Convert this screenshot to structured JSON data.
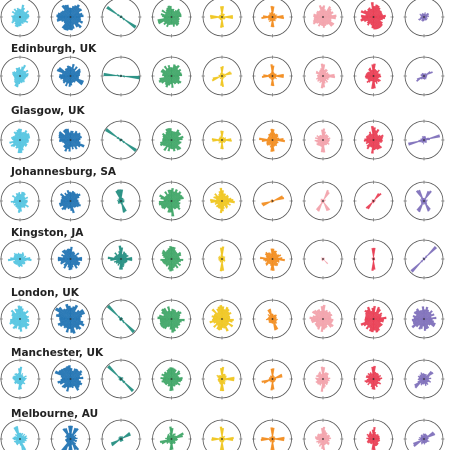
{
  "chart_data": {
    "type": "polar-bar-small-multiples",
    "title": "",
    "xlabel": "",
    "ylabel": "",
    "grid": false,
    "columns": 9,
    "column_colors": [
      "#4fc3e0",
      "#1a6fb0",
      "#1e8c7e",
      "#3aa363",
      "#f0c419",
      "#f28a1a",
      "#f2a0a8",
      "#e8384f",
      "#7b6bb8"
    ],
    "rows": [
      {
        "label": ""
      },
      {
        "label": "Edinburgh, UK"
      },
      {
        "label": "Glasgow, UK"
      },
      {
        "label": "Johannesburg, SA"
      },
      {
        "label": "Kingston, JA"
      },
      {
        "label": "London, UK"
      },
      {
        "label": "Manchester, UK"
      },
      {
        "label": "Melbourne, AU"
      }
    ],
    "profiles": [
      [
        {
          "spread": 0.65,
          "axis": 0.3,
          "peak": [
            20,
            200
          ]
        },
        {
          "spread": 0.85,
          "axis": 0.2,
          "peak": [
            300
          ]
        },
        {
          "spread": 0.05,
          "axis": 0.9,
          "peak": [
            125,
            305
          ]
        },
        {
          "spread": 0.7,
          "axis": 0.2,
          "peak": [
            250
          ]
        },
        {
          "spread": 0.3,
          "axis": 0.75,
          "peak": [
            0,
            90,
            180,
            270
          ]
        },
        {
          "spread": 0.4,
          "axis": 0.6,
          "peak": [
            0,
            90,
            180,
            270
          ]
        },
        {
          "spread": 0.75,
          "axis": 0.2,
          "peak": [
            0,
            90
          ]
        },
        {
          "spread": 0.8,
          "axis": 0.2,
          "peak": [
            0
          ]
        },
        {
          "spread": 0.25,
          "axis": 0.2,
          "peak": [
            60,
            240
          ]
        }
      ],
      [
        {
          "spread": 0.6,
          "axis": 0.4,
          "peak": [
            200,
            20
          ]
        },
        {
          "spread": 0.75,
          "axis": 0.3,
          "peak": [
            300,
            120
          ]
        },
        {
          "spread": 0.02,
          "axis": 0.95,
          "peak": [
            95,
            275
          ]
        },
        {
          "spread": 0.75,
          "axis": 0.2,
          "peak": [
            250
          ]
        },
        {
          "spread": 0.25,
          "axis": 0.7,
          "peak": [
            0,
            70,
            180,
            250
          ]
        },
        {
          "spread": 0.35,
          "axis": 0.65,
          "peak": [
            0,
            90,
            180,
            270
          ]
        },
        {
          "spread": 0.6,
          "axis": 0.5,
          "peak": [
            0,
            90,
            180
          ]
        },
        {
          "spread": 0.65,
          "axis": 0.5,
          "peak": [
            0,
            180
          ]
        },
        {
          "spread": 0.25,
          "axis": 0.5,
          "peak": [
            60,
            240
          ]
        }
      ],
      [
        {
          "spread": 0.7,
          "axis": 0.3,
          "peak": [
            0,
            180
          ]
        },
        {
          "spread": 0.8,
          "axis": 0.3,
          "peak": [
            300,
            120
          ]
        },
        {
          "spread": 0.05,
          "axis": 0.95,
          "peak": [
            125,
            305
          ]
        },
        {
          "spread": 0.8,
          "axis": 0.2,
          "peak": [
            260
          ]
        },
        {
          "spread": 0.3,
          "axis": 0.6,
          "peak": [
            0,
            90,
            180,
            270
          ]
        },
        {
          "spread": 0.55,
          "axis": 0.5,
          "peak": [
            0,
            90,
            180,
            270
          ]
        },
        {
          "spread": 0.6,
          "axis": 0.5,
          "peak": [
            0,
            180
          ]
        },
        {
          "spread": 0.75,
          "axis": 0.4,
          "peak": [
            0,
            180
          ]
        },
        {
          "spread": 0.3,
          "axis": 0.7,
          "peak": [
            75,
            255
          ]
        }
      ],
      [
        {
          "spread": 0.6,
          "axis": 0.3,
          "peak": [
            180
          ]
        },
        {
          "spread": 0.75,
          "axis": 0.3,
          "peak": [
            300
          ]
        },
        {
          "spread": 0.3,
          "axis": 0.8,
          "peak": [
            160,
            340,
            0
          ]
        },
        {
          "spread": 0.8,
          "axis": 0.3,
          "peak": [
            0,
            180
          ]
        },
        {
          "spread": 0.65,
          "axis": 0.4,
          "peak": [
            0,
            90,
            180,
            270
          ]
        },
        {
          "spread": 0.1,
          "axis": 0.95,
          "peak": [
            70,
            250
          ]
        },
        {
          "spread": 0.2,
          "axis": 0.85,
          "peak": [
            30,
            210,
            150
          ]
        },
        {
          "spread": 0.1,
          "axis": 0.8,
          "peak": [
            40,
            220
          ]
        },
        {
          "spread": 0.3,
          "axis": 0.8,
          "peak": [
            30,
            150,
            210,
            330
          ]
        }
      ],
      [
        {
          "spread": 0.55,
          "axis": 0.5,
          "peak": [
            90,
            270
          ]
        },
        {
          "spread": 0.75,
          "axis": 0.4,
          "peak": [
            0,
            90,
            180,
            270
          ]
        },
        {
          "spread": 0.6,
          "axis": 0.5,
          "peak": [
            0,
            90,
            180,
            270
          ]
        },
        {
          "spread": 0.75,
          "axis": 0.3,
          "peak": [
            0,
            180
          ]
        },
        {
          "spread": 0.35,
          "axis": 0.85,
          "peak": [
            0,
            180
          ]
        },
        {
          "spread": 0.6,
          "axis": 0.4,
          "peak": [
            0,
            90,
            180,
            270
          ]
        },
        {
          "spread": 0.05,
          "axis": 0.3,
          "peak": [
            135
          ]
        },
        {
          "spread": 0.1,
          "axis": 0.95,
          "peak": [
            0,
            180
          ]
        },
        {
          "spread": 0.05,
          "axis": 0.9,
          "peak": [
            45,
            225
          ]
        }
      ],
      [
        {
          "spread": 0.75,
          "axis": 0.3,
          "peak": [
            0,
            180
          ]
        },
        {
          "spread": 0.95,
          "axis": 0.2,
          "peak": [
            300
          ]
        },
        {
          "spread": 0.1,
          "axis": 0.9,
          "peak": [
            135,
            315
          ]
        },
        {
          "spread": 0.8,
          "axis": 0.2,
          "peak": [
            250
          ]
        },
        {
          "spread": 0.8,
          "axis": 0.2,
          "peak": [
            0
          ]
        },
        {
          "spread": 0.45,
          "axis": 0.6,
          "peak": [
            160,
            340
          ]
        },
        {
          "spread": 0.85,
          "axis": 0.3,
          "peak": [
            0
          ]
        },
        {
          "spread": 0.85,
          "axis": 0.3,
          "peak": [
            0
          ]
        },
        {
          "spread": 0.8,
          "axis": 0.3,
          "peak": [
            230
          ]
        }
      ],
      [
        {
          "spread": 0.55,
          "axis": 0.6,
          "peak": [
            0,
            180
          ]
        },
        {
          "spread": 0.85,
          "axis": 0.3,
          "peak": [
            300
          ]
        },
        {
          "spread": 0.15,
          "axis": 0.85,
          "peak": [
            135,
            315
          ]
        },
        {
          "spread": 0.7,
          "axis": 0.3,
          "peak": [
            0,
            180
          ]
        },
        {
          "spread": 0.5,
          "axis": 0.7,
          "peak": [
            0,
            180,
            90
          ]
        },
        {
          "spread": 0.3,
          "axis": 0.7,
          "peak": [
            0,
            70,
            180,
            250
          ]
        },
        {
          "spread": 0.55,
          "axis": 0.5,
          "peak": [
            0,
            180
          ]
        },
        {
          "spread": 0.65,
          "axis": 0.5,
          "peak": [
            0,
            180
          ]
        },
        {
          "spread": 0.55,
          "axis": 0.6,
          "peak": [
            230,
            50
          ]
        }
      ],
      [
        {
          "spread": 0.6,
          "axis": 0.6,
          "peak": [
            160,
            340
          ]
        },
        {
          "spread": 0.6,
          "axis": 0.7,
          "peak": [
            0,
            30,
            150,
            180,
            210,
            330
          ]
        },
        {
          "spread": 0.2,
          "axis": 0.8,
          "peak": [
            60,
            240
          ]
        },
        {
          "spread": 0.5,
          "axis": 0.6,
          "peak": [
            0,
            70,
            180,
            250
          ]
        },
        {
          "spread": 0.3,
          "axis": 0.8,
          "peak": [
            0,
            90,
            180,
            270
          ]
        },
        {
          "spread": 0.3,
          "axis": 0.8,
          "peak": [
            0,
            90,
            180,
            270
          ]
        },
        {
          "spread": 0.6,
          "axis": 0.5,
          "peak": [
            0,
            180
          ]
        },
        {
          "spread": 0.55,
          "axis": 0.5,
          "peak": [
            0,
            180
          ]
        },
        {
          "spread": 0.45,
          "axis": 0.7,
          "peak": [
            60,
            240
          ]
        }
      ]
    ]
  }
}
